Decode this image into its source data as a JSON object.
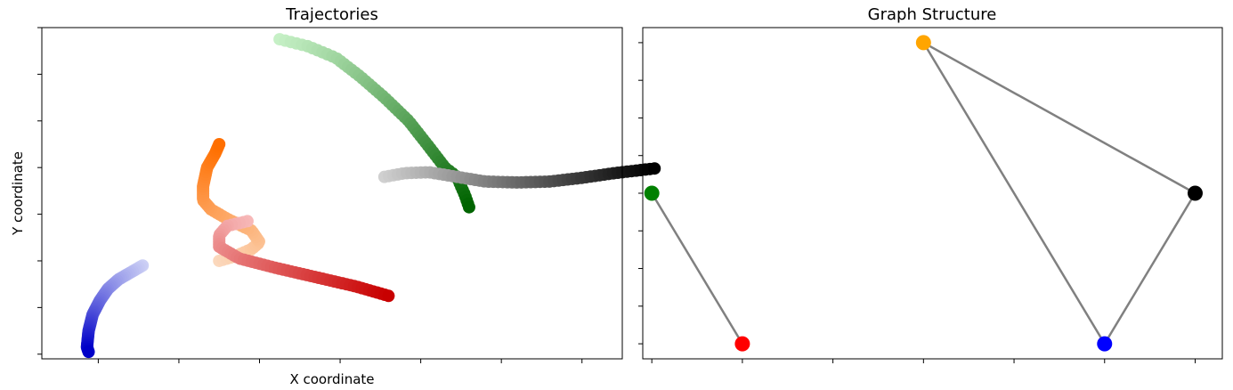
{
  "chart_data": [
    {
      "type": "scatter",
      "title": "Trajectories",
      "xlabel": "X coordinate",
      "ylabel": "Y coordinate",
      "tick_labels_shown": false,
      "xlim": [
        -0.7,
        6.5
      ],
      "ylim": [
        -0.6,
        6.5
      ],
      "x_ticks": [
        0,
        1,
        2,
        3,
        4,
        5,
        6
      ],
      "y_ticks": [
        -0.5,
        0.5,
        1.5,
        2.5,
        3.5,
        4.5,
        5.5,
        6.5
      ],
      "grid": false,
      "legend": "none",
      "series": [
        {
          "color_light": "#ccd0f5",
          "color_dark": "#0000c8",
          "points": [
            [
              0.55,
              1.4
            ],
            [
              0.4,
              1.25
            ],
            [
              0.25,
              1.1
            ],
            [
              0.12,
              0.9
            ],
            [
              0.02,
              0.65
            ],
            [
              -0.07,
              0.35
            ],
            [
              -0.12,
              0.0
            ],
            [
              -0.14,
              -0.35
            ],
            [
              -0.12,
              -0.45
            ]
          ]
        },
        {
          "color_light": "#fbd8bc",
          "color_dark": "#ff6f00",
          "points": [
            [
              1.5,
              1.5
            ],
            [
              1.7,
              1.6
            ],
            [
              1.9,
              1.75
            ],
            [
              2.0,
              1.9
            ],
            [
              1.9,
              2.15
            ],
            [
              1.6,
              2.4
            ],
            [
              1.4,
              2.6
            ],
            [
              1.3,
              2.8
            ],
            [
              1.3,
              3.1
            ],
            [
              1.35,
              3.5
            ],
            [
              1.45,
              3.8
            ],
            [
              1.5,
              4.0
            ]
          ]
        },
        {
          "color_light": "#f7b8b8",
          "color_dark": "#c80000",
          "points": [
            [
              1.85,
              2.35
            ],
            [
              1.6,
              2.25
            ],
            [
              1.5,
              2.05
            ],
            [
              1.5,
              1.8
            ],
            [
              1.75,
              1.55
            ],
            [
              2.2,
              1.35
            ],
            [
              2.7,
              1.15
            ],
            [
              3.2,
              0.95
            ],
            [
              3.5,
              0.8
            ],
            [
              3.6,
              0.75
            ]
          ]
        },
        {
          "color_light": "#c6f0c6",
          "color_dark": "#006400",
          "points": [
            [
              2.25,
              6.25
            ],
            [
              2.6,
              6.1
            ],
            [
              2.95,
              5.85
            ],
            [
              3.25,
              5.45
            ],
            [
              3.55,
              5.0
            ],
            [
              3.85,
              4.5
            ],
            [
              4.1,
              3.95
            ],
            [
              4.3,
              3.5
            ],
            [
              4.45,
              3.3
            ],
            [
              4.55,
              2.9
            ],
            [
              4.6,
              2.65
            ]
          ]
        },
        {
          "color_light": "#d0d0d0",
          "color_dark": "#000000",
          "points": [
            [
              3.55,
              3.3
            ],
            [
              3.8,
              3.38
            ],
            [
              4.1,
              3.4
            ],
            [
              4.45,
              3.3
            ],
            [
              4.8,
              3.2
            ],
            [
              5.2,
              3.18
            ],
            [
              5.6,
              3.2
            ],
            [
              6.0,
              3.28
            ],
            [
              6.4,
              3.38
            ],
            [
              6.9,
              3.48
            ]
          ]
        }
      ]
    },
    {
      "type": "network",
      "title": "Graph Structure",
      "tick_labels_shown": false,
      "xlim": [
        -0.1,
        6.3
      ],
      "ylim": [
        -0.2,
        4.2
      ],
      "x_ticks": [
        0,
        1,
        2,
        3,
        4,
        5,
        6
      ],
      "y_ticks": [
        0,
        0.5,
        1,
        1.5,
        2,
        2.5,
        3,
        3.5,
        4
      ],
      "edge_color": "#808080",
      "nodes": [
        {
          "id": "green",
          "color": "#008000",
          "x": 0,
          "y": 2
        },
        {
          "id": "red",
          "color": "#ff0000",
          "x": 1,
          "y": 0
        },
        {
          "id": "orange",
          "color": "#ffa500",
          "x": 3,
          "y": 4
        },
        {
          "id": "blue",
          "color": "#0000ff",
          "x": 5,
          "y": 0
        },
        {
          "id": "black",
          "color": "#000000",
          "x": 6,
          "y": 2
        }
      ],
      "edges": [
        [
          "green",
          "red"
        ],
        [
          "orange",
          "black"
        ],
        [
          "orange",
          "blue"
        ],
        [
          "blue",
          "black"
        ]
      ]
    }
  ]
}
